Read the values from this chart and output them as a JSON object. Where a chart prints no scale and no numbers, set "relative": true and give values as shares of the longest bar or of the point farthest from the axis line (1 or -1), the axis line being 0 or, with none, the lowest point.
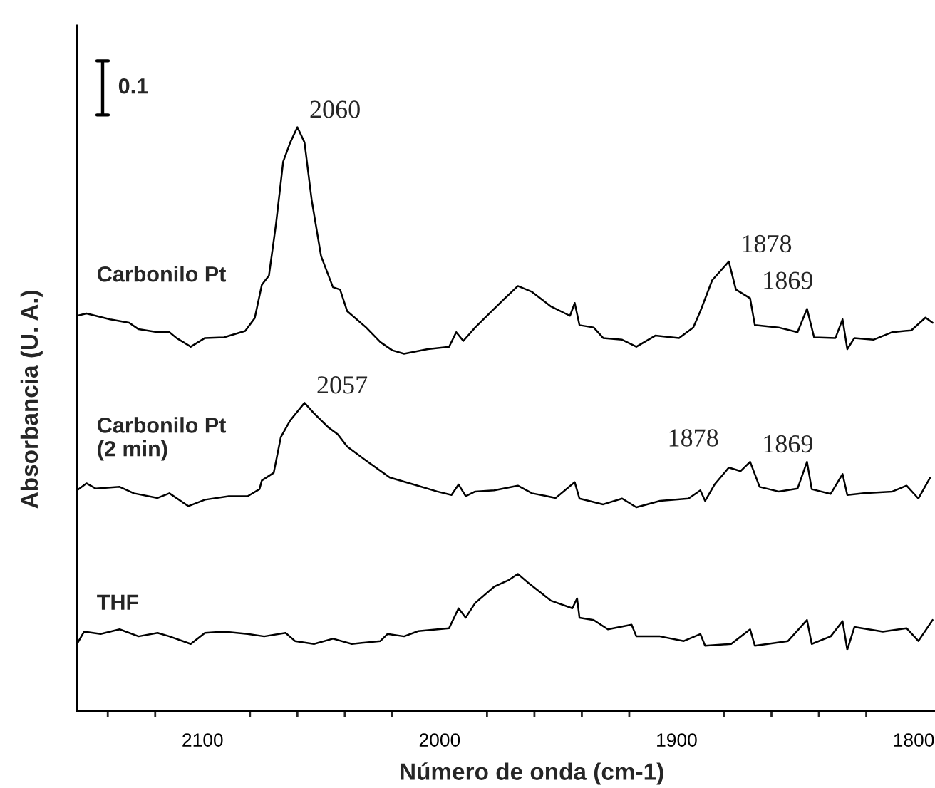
{
  "chart_data": {
    "type": "line",
    "relative": true,
    "xlabel": "Número de onda (cm-1)",
    "ylabel": "Absorbancia (U. A.)",
    "line_style": "solid",
    "xlim": [
      2153,
      1791
    ],
    "xticks": [
      {
        "value": 2140,
        "label": null
      },
      {
        "value": 2120,
        "label": null
      },
      2100,
      {
        "value": 2080,
        "label": null
      },
      {
        "value": 2060,
        "label": null
      },
      {
        "value": 2040,
        "label": null
      },
      {
        "value": 2020,
        "label": null
      },
      2000,
      {
        "value": 1980,
        "label": null
      },
      {
        "value": 1960,
        "label": null
      },
      {
        "value": 1940,
        "label": null
      },
      {
        "value": 1920,
        "label": null
      },
      1900,
      {
        "value": 1880,
        "label": null
      },
      {
        "value": 1860,
        "label": null
      },
      {
        "value": 1840,
        "label": null
      },
      {
        "value": 1820,
        "label": null
      },
      1800
    ],
    "series": [
      {
        "name": "Carbonilo Pt",
        "color": "#000000",
        "x": [
          2153,
          2149,
          2139,
          2131,
          2127,
          2119,
          2114,
          2111,
          2105,
          2099,
          2091,
          2082,
          2078,
          2075,
          2072,
          2069,
          2066,
          2063,
          2060,
          2057,
          2054,
          2050,
          2045,
          2042,
          2039,
          2031,
          2025,
          2020,
          2015,
          2005,
          1996,
          1993,
          1990,
          1985,
          1979,
          1973,
          1967,
          1961,
          1953,
          1945,
          1943,
          1941,
          1935,
          1931,
          1923,
          1917,
          1909,
          1899,
          1893,
          1890,
          1885,
          1878,
          1875,
          1869,
          1867,
          1857,
          1849,
          1845,
          1842,
          1833,
          1830,
          1828,
          1825,
          1817,
          1809,
          1801,
          1795,
          1792
        ],
        "values": [
          0.677,
          0.681,
          0.671,
          0.665,
          0.654,
          0.649,
          0.649,
          0.639,
          0.624,
          0.639,
          0.64,
          0.651,
          0.673,
          0.73,
          0.746,
          0.835,
          0.941,
          0.974,
          1.0,
          0.974,
          0.876,
          0.779,
          0.726,
          0.722,
          0.685,
          0.657,
          0.632,
          0.618,
          0.612,
          0.62,
          0.624,
          0.649,
          0.634,
          0.657,
          0.681,
          0.705,
          0.728,
          0.718,
          0.693,
          0.677,
          0.699,
          0.661,
          0.657,
          0.639,
          0.636,
          0.624,
          0.643,
          0.639,
          0.657,
          0.685,
          0.738,
          0.77,
          0.722,
          0.707,
          0.661,
          0.657,
          0.649,
          0.689,
          0.64,
          0.639,
          0.671,
          0.62,
          0.639,
          0.636,
          0.649,
          0.652,
          0.674,
          0.665
        ]
      },
      {
        "name": "Carbonilo Pt\n(2 min)",
        "color": "#000000",
        "x": [
          2153,
          2149,
          2145,
          2135,
          2129,
          2119,
          2114,
          2106,
          2099,
          2089,
          2081,
          2076,
          2075,
          2070,
          2067,
          2063,
          2057,
          2053,
          2047,
          2043,
          2039,
          2031,
          2021,
          2011,
          2001,
          1995,
          1992,
          1989,
          1985,
          1977,
          1967,
          1961,
          1951,
          1943,
          1941,
          1931,
          1923,
          1917,
          1907,
          1895,
          1890,
          1888,
          1884,
          1878,
          1873,
          1869,
          1865,
          1857,
          1849,
          1845,
          1843,
          1835,
          1830,
          1828,
          1821,
          1809,
          1803,
          1798,
          1793
        ],
        "values": [
          0.378,
          0.39,
          0.381,
          0.384,
          0.373,
          0.365,
          0.373,
          0.351,
          0.362,
          0.368,
          0.368,
          0.38,
          0.395,
          0.408,
          0.469,
          0.498,
          0.528,
          0.51,
          0.486,
          0.474,
          0.453,
          0.429,
          0.4,
          0.388,
          0.376,
          0.37,
          0.388,
          0.368,
          0.376,
          0.378,
          0.386,
          0.373,
          0.365,
          0.392,
          0.364,
          0.354,
          0.364,
          0.349,
          0.36,
          0.364,
          0.378,
          0.36,
          0.388,
          0.417,
          0.411,
          0.427,
          0.384,
          0.376,
          0.381,
          0.427,
          0.38,
          0.372,
          0.406,
          0.37,
          0.373,
          0.376,
          0.386,
          0.364,
          0.4
        ]
      },
      {
        "name": "THF",
        "color": "#000000",
        "x": [
          2153,
          2150,
          2143,
          2135,
          2127,
          2119,
          2114,
          2105,
          2099,
          2091,
          2081,
          2074,
          2065,
          2061,
          2053,
          2045,
          2037,
          2025,
          2022,
          2015,
          2009,
          1996,
          1992,
          1989,
          1985,
          1977,
          1971,
          1967,
          1963,
          1953,
          1944,
          1942,
          1941,
          1935,
          1929,
          1919,
          1917,
          1907,
          1897,
          1890,
          1888,
          1877,
          1869,
          1867,
          1853,
          1845,
          1843,
          1835,
          1830,
          1828,
          1825,
          1813,
          1803,
          1798,
          1792
        ],
        "values": [
          0.115,
          0.136,
          0.132,
          0.14,
          0.128,
          0.134,
          0.128,
          0.115,
          0.134,
          0.136,
          0.132,
          0.128,
          0.134,
          0.12,
          0.115,
          0.124,
          0.115,
          0.12,
          0.132,
          0.128,
          0.137,
          0.142,
          0.176,
          0.16,
          0.185,
          0.213,
          0.224,
          0.235,
          0.221,
          0.189,
          0.176,
          0.193,
          0.16,
          0.156,
          0.14,
          0.148,
          0.128,
          0.128,
          0.12,
          0.132,
          0.112,
          0.115,
          0.14,
          0.112,
          0.12,
          0.156,
          0.115,
          0.128,
          0.154,
          0.105,
          0.144,
          0.136,
          0.142,
          0.12,
          0.156
        ]
      }
    ],
    "annotations": [
      "0.1",
      {
        "text": "2060",
        "x": 2060,
        "y": 1.0
      },
      {
        "text": "1878",
        "x": 1878,
        "y": 0.77
      },
      {
        "text": "1869",
        "x": 1869,
        "y": 0.707
      },
      {
        "text": "2057",
        "x": 2057,
        "y": 0.528
      },
      {
        "text": "1878",
        "x": 1878,
        "y": 0.417
      },
      {
        "text": "1869",
        "x": 1869,
        "y": 0.427
      }
    ]
  }
}
